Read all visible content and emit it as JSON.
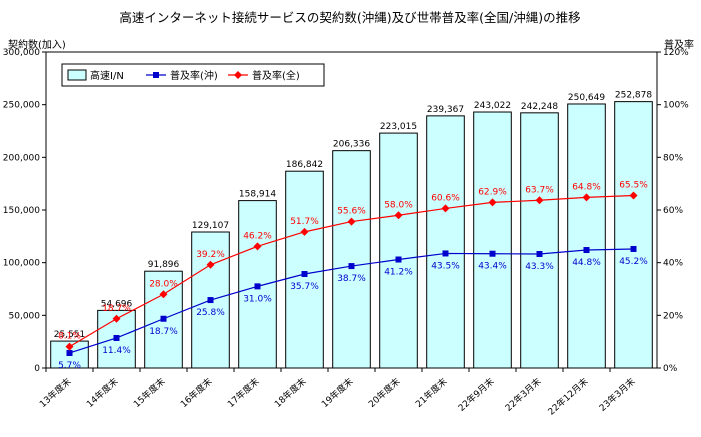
{
  "chart_data": {
    "type": "bar",
    "title": "高速インターネット接続サービスの契約数(沖縄)及び世帯普及率(全国/沖縄)の推移",
    "ylabel_left": "契約数(加入)",
    "ylabel_right": "普及率",
    "ylim_left": [
      0,
      300000
    ],
    "ylim_right": [
      0,
      120
    ],
    "left_ticks": [
      "0",
      "50,000",
      "100,000",
      "150,000",
      "200,000",
      "250,000",
      "300,000"
    ],
    "left_tick_values": [
      0,
      50000,
      100000,
      150000,
      200000,
      250000,
      300000
    ],
    "right_ticks": [
      "0%",
      "20%",
      "40%",
      "60%",
      "80%",
      "100%",
      "120%"
    ],
    "right_tick_values": [
      0,
      20,
      40,
      60,
      80,
      100,
      120
    ],
    "grid": false,
    "legend_placement": "top-left",
    "categories": [
      "13年度末",
      "14年度末",
      "15年度末",
      "16年度末",
      "17年度末",
      "18年度末",
      "19年度末",
      "20年度末",
      "21年度末",
      "22年9月末",
      "22年3月末",
      "22年12月末",
      "23年3月末"
    ],
    "series": [
      {
        "name": "高速I/N",
        "kind": "bar",
        "axis": "left",
        "color": "#ccffff",
        "values": [
          25551,
          54696,
          91896,
          129107,
          158914,
          186842,
          206336,
          223015,
          239367,
          243022,
          242248,
          250649,
          252878
        ],
        "labels": [
          "25,551",
          "54,696",
          "91,896",
          "129,107",
          "158,914",
          "186,842",
          "206,336",
          "223,015",
          "239,367",
          "243,022",
          "242,248",
          "250,649",
          "252,878"
        ]
      },
      {
        "name": "普及率(沖)",
        "kind": "line",
        "axis": "right",
        "color": "#0000cc",
        "values": [
          5.7,
          11.4,
          18.7,
          25.8,
          31.0,
          35.7,
          38.7,
          41.2,
          43.5,
          43.4,
          43.3,
          44.8,
          45.2
        ],
        "labels": [
          "5.7%",
          "11.4%",
          "18.7%",
          "25.8%",
          "31.0%",
          "35.7%",
          "38.7%",
          "41.2%",
          "43.5%",
          "43.4%",
          "43.3%",
          "44.8%",
          "45.2%"
        ]
      },
      {
        "name": "普及率(全)",
        "kind": "line",
        "axis": "right",
        "color": "#ff0000",
        "values": [
          8.1,
          18.7,
          28.0,
          39.2,
          46.2,
          51.7,
          55.6,
          58.0,
          60.6,
          62.9,
          63.7,
          64.8,
          65.5
        ],
        "labels": [
          "8.1%",
          "18.7%",
          "28.0%",
          "39.2%",
          "46.2%",
          "51.7%",
          "55.6%",
          "58.0%",
          "60.6%",
          "62.9%",
          "63.7%",
          "64.8%",
          "65.5%"
        ]
      }
    ]
  }
}
